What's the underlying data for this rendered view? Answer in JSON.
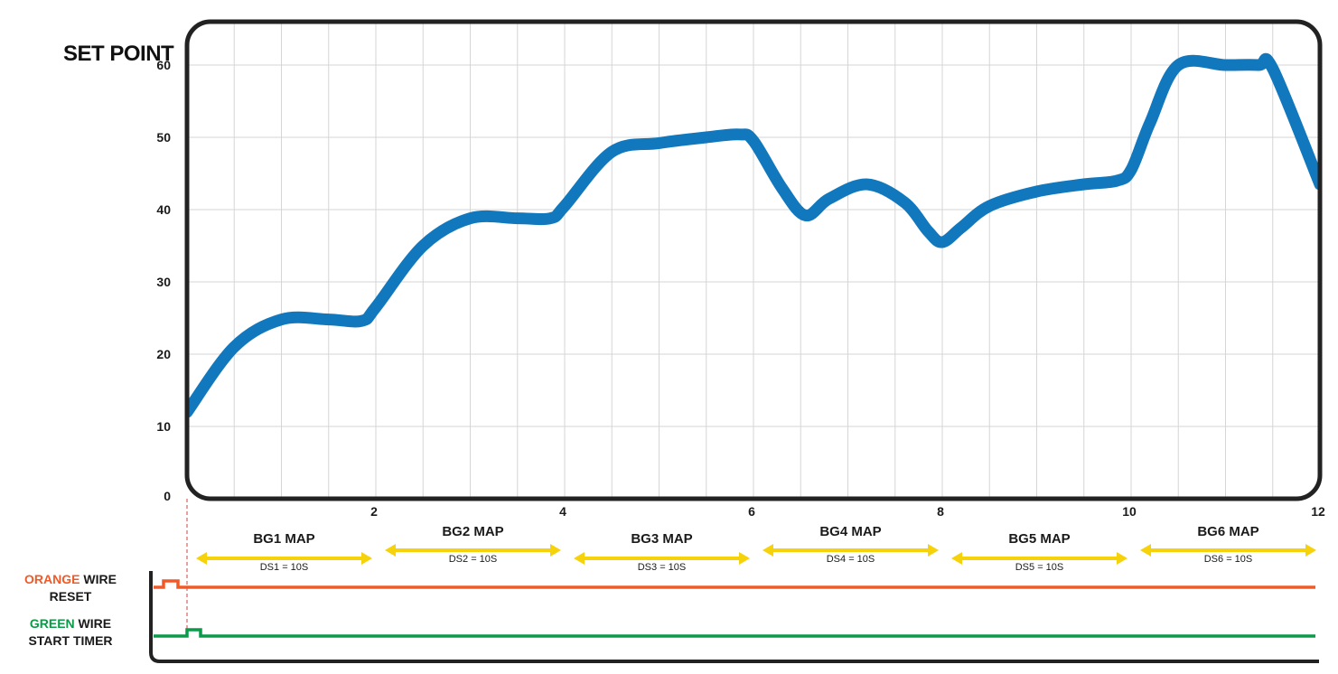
{
  "chart_data": {
    "type": "line",
    "title": "SET POINT",
    "xlim": [
      0,
      12
    ],
    "ylim": [
      0,
      66
    ],
    "x_ticks": [
      "2",
      "4",
      "6",
      "8",
      "10",
      "12"
    ],
    "x_tick_values": [
      2,
      4,
      6,
      8,
      10,
      12
    ],
    "y_ticks": [
      "0",
      "10",
      "20",
      "30",
      "40",
      "50",
      "60"
    ],
    "y_tick_values": [
      0,
      10,
      20,
      30,
      40,
      50,
      60
    ],
    "grid": true,
    "colors": {
      "line": "#1278be",
      "frame": "#222222",
      "grid": "#d6d6d6",
      "arrow": "#f5d20a",
      "orange": "#f05a28",
      "green": "#0a9a48"
    },
    "series": [
      {
        "x": [
          0,
          0.5,
          1,
          1.5,
          1.85,
          2,
          2.5,
          3,
          3.5,
          3.85,
          4,
          4.5,
          5,
          5.5,
          5.85,
          6,
          6.3,
          6.55,
          6.8,
          7.2,
          7.6,
          7.85,
          8,
          8.2,
          8.5,
          9,
          9.5,
          9.85,
          10,
          10.2,
          10.5,
          11,
          11.35,
          11.5,
          12
        ],
        "y": [
          12,
          21,
          24.8,
          24.8,
          24.6,
          26.5,
          35,
          38.8,
          38.8,
          38.8,
          40.5,
          48,
          49.2,
          50,
          50.4,
          49.5,
          43,
          39.2,
          41.5,
          43.5,
          41,
          37,
          35.5,
          37.5,
          40.5,
          42.5,
          43.5,
          44,
          45.5,
          52,
          60,
          60,
          60,
          59.5,
          43.5
        ]
      }
    ],
    "segments": [
      {
        "label": "BG1 MAP",
        "ds": "DS1 = 10S",
        "start": 0,
        "end": 2
      },
      {
        "label": "BG2 MAP",
        "ds": "DS2 = 10S",
        "start": 2,
        "end": 4
      },
      {
        "label": "BG3 MAP",
        "ds": "DS3 = 10S",
        "start": 4,
        "end": 6
      },
      {
        "label": "BG4 MAP",
        "ds": "DS4 = 10S",
        "start": 6,
        "end": 8
      },
      {
        "label": "BG5 MAP",
        "ds": "DS5 = 10S",
        "start": 8,
        "end": 10
      },
      {
        "label": "BG6 MAP",
        "ds": "DS6 = 10S",
        "start": 10,
        "end": 12
      }
    ],
    "wires": [
      {
        "color_word": "ORANGE",
        "rest": " WIRE",
        "line2": "RESET",
        "color": "#f05a28"
      },
      {
        "color_word": "GREEN",
        "rest": " WIRE",
        "line2": "START TIMER",
        "color": "#0a9a48"
      }
    ]
  }
}
